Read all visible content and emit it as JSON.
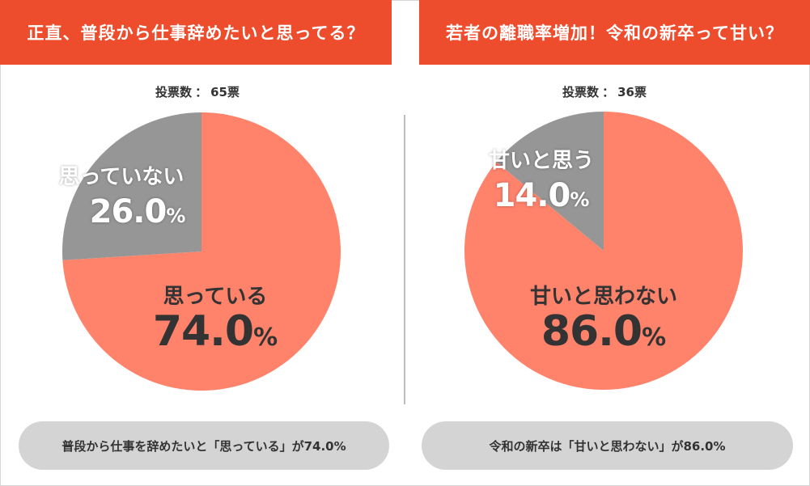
{
  "chart_data": [
    {
      "type": "pie",
      "title": "正直、普段から仕事辞めたいと思ってる？",
      "votes_label": "投票数",
      "votes_sep": "：",
      "votes_value": "65票",
      "slices": [
        {
          "name": "思っている",
          "value": 74.0,
          "pct_text": "74.0",
          "color": "#ff826b"
        },
        {
          "name": "思っていない",
          "value": 26.0,
          "pct_text": "26.0",
          "color": "#969696"
        }
      ],
      "pct_unit": "%",
      "summary": "普段から仕事を辞めたいと「思っている」が74.0%"
    },
    {
      "type": "pie",
      "title": "若者の離職率増加！令和の新卒って甘い？",
      "votes_label": "投票数",
      "votes_sep": "：",
      "votes_value": "36票",
      "slices": [
        {
          "name": "甘いと思わない",
          "value": 86.0,
          "pct_text": "86.0",
          "color": "#ff826b"
        },
        {
          "name": "甘いと思う",
          "value": 14.0,
          "pct_text": "14.0",
          "color": "#969696"
        }
      ],
      "pct_unit": "%",
      "summary": "令和の新卒は「甘いと思わない」が86.0%"
    }
  ]
}
